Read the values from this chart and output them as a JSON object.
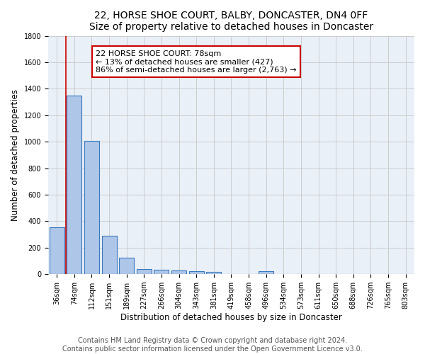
{
  "title1": "22, HORSE SHOE COURT, BALBY, DONCASTER, DN4 0FF",
  "title2": "Size of property relative to detached houses in Doncaster",
  "xlabel": "Distribution of detached houses by size in Doncaster",
  "ylabel": "Number of detached properties",
  "footer1": "Contains HM Land Registry data © Crown copyright and database right 2024.",
  "footer2": "Contains public sector information licensed under the Open Government Licence v3.0.",
  "bar_labels": [
    "36sqm",
    "74sqm",
    "112sqm",
    "151sqm",
    "189sqm",
    "227sqm",
    "266sqm",
    "304sqm",
    "343sqm",
    "381sqm",
    "419sqm",
    "458sqm",
    "496sqm",
    "534sqm",
    "573sqm",
    "611sqm",
    "650sqm",
    "688sqm",
    "726sqm",
    "765sqm",
    "803sqm"
  ],
  "bar_values": [
    355,
    1350,
    1005,
    290,
    125,
    40,
    33,
    28,
    20,
    15,
    0,
    0,
    20,
    0,
    0,
    0,
    0,
    0,
    0,
    0,
    0
  ],
  "bar_color": "#aec6e8",
  "bar_edge_color": "#3a7abf",
  "annotation_text": "22 HORSE SHOE COURT: 78sqm\n← 13% of detached houses are smaller (427)\n86% of semi-detached houses are larger (2,763) →",
  "annotation_box_color": "#ffffff",
  "annotation_box_edge_color": "#cc0000",
  "vline_x": 0.5,
  "vline_color": "#cc0000",
  "ylim": [
    0,
    1800
  ],
  "yticks": [
    0,
    200,
    400,
    600,
    800,
    1000,
    1200,
    1400,
    1600,
    1800
  ],
  "grid_color": "#cccccc",
  "bg_color": "#eaf0f8",
  "title1_fontsize": 10,
  "title2_fontsize": 9.5,
  "axis_label_fontsize": 8.5,
  "tick_fontsize": 7,
  "footer_fontsize": 7,
  "annotation_fontsize": 8
}
